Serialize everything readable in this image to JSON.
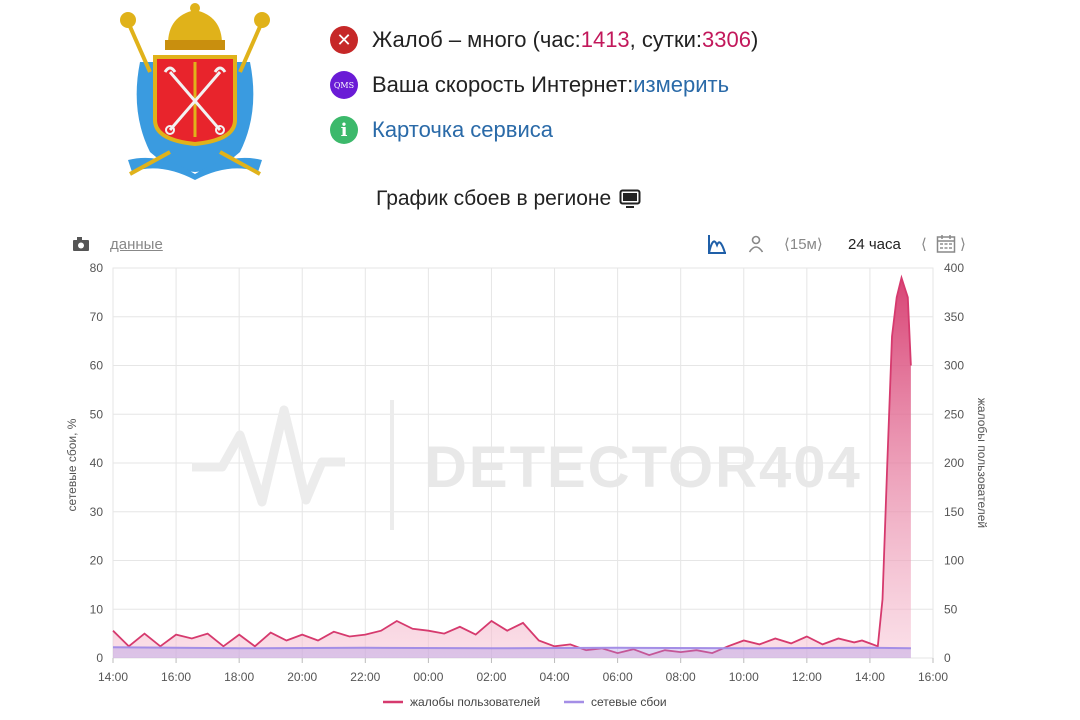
{
  "header": {
    "complaints_prefix": "Жалоб – много (час: ",
    "complaints_hour": "1413",
    "complaints_mid": ", сутки: ",
    "complaints_day": "3306",
    "complaints_suffix": ")",
    "speed_prefix": "Ваша скорость Интернет: ",
    "speed_link": "измерить",
    "service_card": "Карточка сервиса",
    "qms_badge": "QMS",
    "info_badge": "i",
    "error_badge": "✕"
  },
  "chart_title": "График сбоев в регионе",
  "toolbar": {
    "data_label": "данные",
    "range_15m": "⟨15м⟩",
    "range_24h": "24 часа",
    "nav_left": "⟨",
    "nav_right": "⟩"
  },
  "watermark": "DETECTOR404",
  "colors": {
    "complaints": "#d63a6e",
    "outages": "#a48ee6",
    "grid": "#e6e6e6",
    "watermark": "#e9e9e9"
  },
  "chart_data": {
    "type": "line",
    "x_ticks": [
      "14:00",
      "16:00",
      "18:00",
      "20:00",
      "22:00",
      "00:00",
      "02:00",
      "04:00",
      "06:00",
      "08:00",
      "10:00",
      "12:00",
      "14:00",
      "16:00"
    ],
    "x_range_hours": [
      0,
      26
    ],
    "ylabel_left": "сетевые сбои, %",
    "ylabel_right": "жалобы пользователей",
    "ylim_left": [
      0,
      80
    ],
    "ylim_right": [
      0,
      400
    ],
    "yticks_left": [
      "0",
      "10",
      "20",
      "30",
      "40",
      "50",
      "60",
      "70",
      "80"
    ],
    "yticks_right": [
      "0",
      "50",
      "100",
      "150",
      "200",
      "250",
      "300",
      "350",
      "400"
    ],
    "legend_position": "bottom",
    "grid": true,
    "series": [
      {
        "name": "жалобы пользователей",
        "axis": "right",
        "fill": true,
        "x": [
          0,
          0.5,
          1,
          1.5,
          2,
          2.5,
          3,
          3.5,
          4,
          4.5,
          5,
          5.5,
          6,
          6.5,
          7,
          7.5,
          8,
          8.5,
          9,
          9.5,
          10,
          10.5,
          11,
          11.5,
          12,
          12.5,
          13,
          13.5,
          14,
          14.5,
          15,
          15.5,
          16,
          16.5,
          17,
          17.5,
          18,
          18.5,
          19,
          19.5,
          20,
          20.5,
          21,
          21.5,
          22,
          22.5,
          23,
          23.5,
          23.75,
          24,
          24.25,
          24.4,
          24.55,
          24.7,
          24.85,
          25,
          25.1,
          25.2,
          25.3
        ],
        "values": [
          28,
          12,
          25,
          12,
          24,
          20,
          25,
          12,
          24,
          12,
          26,
          18,
          24,
          18,
          27,
          22,
          24,
          28,
          38,
          30,
          28,
          25,
          32,
          24,
          38,
          28,
          36,
          18,
          12,
          14,
          8,
          10,
          5,
          9,
          3,
          8,
          6,
          8,
          5,
          12,
          18,
          14,
          20,
          15,
          22,
          14,
          20,
          16,
          18,
          15,
          12,
          60,
          200,
          330,
          370,
          390,
          380,
          370,
          300
        ]
      },
      {
        "name": "сетевые сбои",
        "axis": "left",
        "fill": true,
        "x": [
          0,
          4,
          8,
          12,
          16,
          20,
          24,
          25.3
        ],
        "values": [
          2.2,
          2.0,
          2.1,
          2.0,
          2.1,
          2.0,
          2.1,
          2.0
        ]
      }
    ]
  }
}
